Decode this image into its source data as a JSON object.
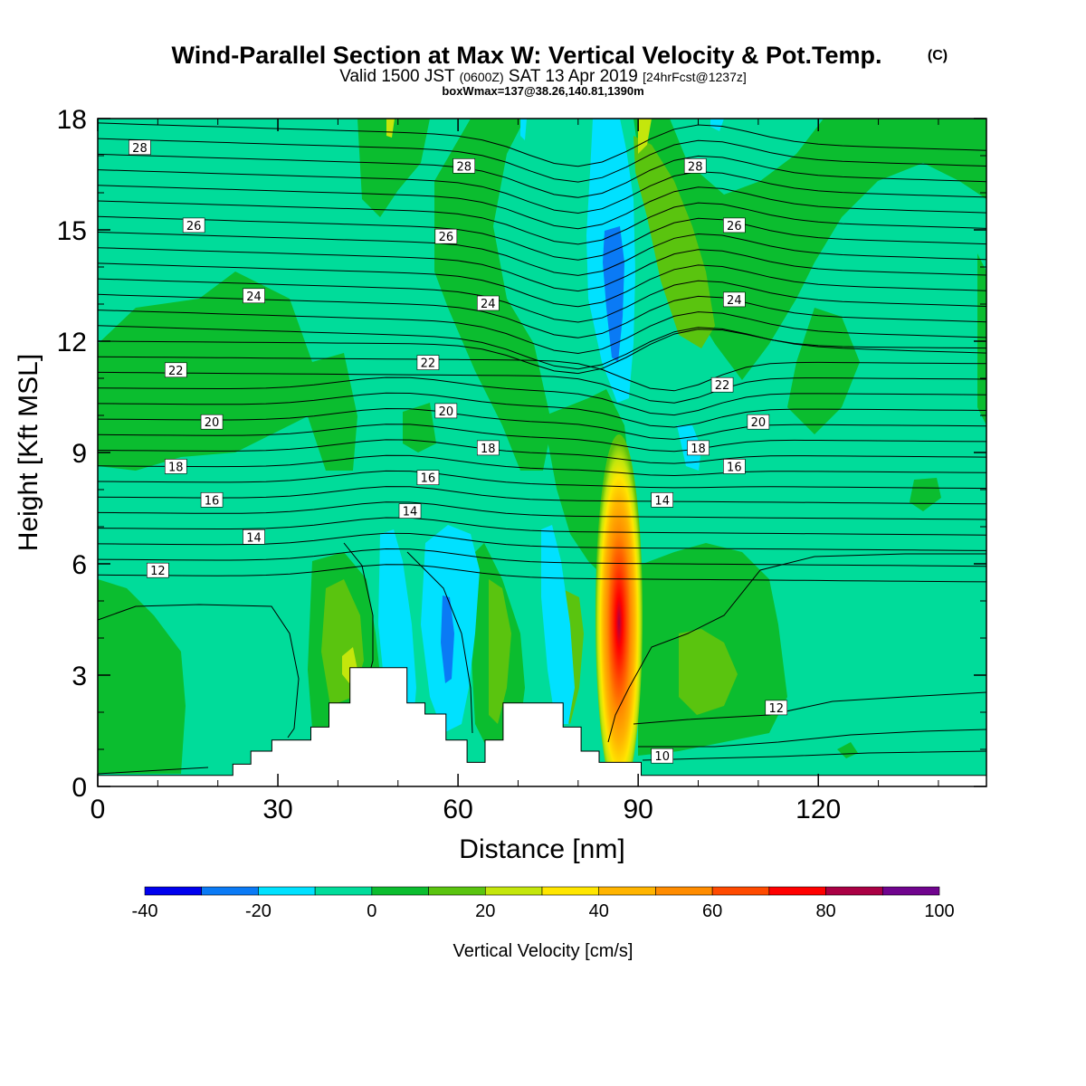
{
  "title_line1": "Wind-Parallel Section at Max W: Vertical Velocity & Pot.Temp.",
  "title_copyright": "(C)",
  "title_line2_valid": "Valid 1500 JST",
  "title_line2_utc": "(0600Z)",
  "title_line2_date": "SAT 13 Apr 2019",
  "title_line2_fcst": "[24hrFcst@1237z]",
  "title_line3": "boxWmax=137@38.26,140.81,1390m",
  "chart_data": {
    "type": "heatmap",
    "xlabel": "Distance [nm]",
    "ylabel": "Height [Kft MSL]",
    "xlim": [
      0,
      148
    ],
    "ylim": [
      0,
      18
    ],
    "x_ticks": [
      0,
      30,
      60,
      90,
      120
    ],
    "y_ticks": [
      0,
      3,
      6,
      9,
      12,
      15,
      18
    ],
    "colorbar": {
      "label": "Vertical Velocity [cm/s]",
      "levels": [
        -40,
        -30,
        -20,
        -10,
        0,
        10,
        20,
        30,
        40,
        50,
        60,
        70,
        80,
        90,
        100
      ],
      "tick_labels": [
        "-40",
        "-20",
        "0",
        "20",
        "40",
        "60",
        "80",
        "100"
      ],
      "tick_values": [
        -40,
        -20,
        0,
        20,
        40,
        60,
        80,
        100
      ],
      "colors": [
        "#0000ee",
        "#0a7af5",
        "#00e1ff",
        "#00dc9a",
        "#0bbd2f",
        "#5ac40f",
        "#c4e60c",
        "#ffe600",
        "#ffb400",
        "#ff8c00",
        "#ff4a00",
        "#ff0000",
        "#aa0044",
        "#70048e"
      ]
    },
    "theta_contour_labels": [
      {
        "value": "28",
        "x": 7,
        "y": 17.2
      },
      {
        "value": "28",
        "x": 61,
        "y": 16.7
      },
      {
        "value": "28",
        "x": 99.5,
        "y": 16.7
      },
      {
        "value": "26",
        "x": 16,
        "y": 15.1
      },
      {
        "value": "26",
        "x": 58,
        "y": 14.8
      },
      {
        "value": "26",
        "x": 106,
        "y": 15.1
      },
      {
        "value": "24",
        "x": 26,
        "y": 13.2
      },
      {
        "value": "24",
        "x": 65,
        "y": 13.0
      },
      {
        "value": "24",
        "x": 106,
        "y": 13.1
      },
      {
        "value": "22",
        "x": 13,
        "y": 11.2
      },
      {
        "value": "22",
        "x": 55,
        "y": 11.4
      },
      {
        "value": "22",
        "x": 104,
        "y": 10.8
      },
      {
        "value": "20",
        "x": 19,
        "y": 9.8
      },
      {
        "value": "20",
        "x": 58,
        "y": 10.1
      },
      {
        "value": "20",
        "x": 110,
        "y": 9.8
      },
      {
        "value": "18",
        "x": 13,
        "y": 8.6
      },
      {
        "value": "18",
        "x": 65,
        "y": 9.1
      },
      {
        "value": "18",
        "x": 100,
        "y": 9.1
      },
      {
        "value": "16",
        "x": 19,
        "y": 7.7
      },
      {
        "value": "16",
        "x": 55,
        "y": 8.3
      },
      {
        "value": "16",
        "x": 106,
        "y": 8.6
      },
      {
        "value": "14",
        "x": 26,
        "y": 6.7
      },
      {
        "value": "14",
        "x": 52,
        "y": 7.4
      },
      {
        "value": "14",
        "x": 94,
        "y": 7.7
      },
      {
        "value": "12",
        "x": 10,
        "y": 5.8
      },
      {
        "value": "12",
        "x": 113,
        "y": 2.1
      },
      {
        "value": "10",
        "x": 94,
        "y": 0.8
      }
    ],
    "terrain_profile_kft": [
      [
        0,
        0.3
      ],
      [
        22.5,
        0.3
      ],
      [
        22.5,
        0.6
      ],
      [
        25.5,
        0.6
      ],
      [
        25.5,
        0.95
      ],
      [
        29,
        0.95
      ],
      [
        29,
        1.25
      ],
      [
        35.5,
        1.25
      ],
      [
        35.5,
        1.6
      ],
      [
        38.5,
        1.6
      ],
      [
        38.5,
        2.25
      ],
      [
        42,
        2.25
      ],
      [
        42,
        3.2
      ],
      [
        51.5,
        3.2
      ],
      [
        51.5,
        2.25
      ],
      [
        54.5,
        2.25
      ],
      [
        54.5,
        1.95
      ],
      [
        58,
        1.95
      ],
      [
        58,
        1.25
      ],
      [
        61.5,
        1.25
      ],
      [
        61.5,
        0.65
      ],
      [
        64.5,
        0.65
      ],
      [
        64.5,
        1.25
      ],
      [
        67.5,
        1.25
      ],
      [
        67.5,
        2.25
      ],
      [
        77.5,
        2.25
      ],
      [
        77.5,
        1.6
      ],
      [
        80.5,
        1.6
      ],
      [
        80.5,
        0.95
      ],
      [
        83.5,
        0.95
      ],
      [
        83.5,
        0.65
      ],
      [
        90.5,
        0.65
      ],
      [
        90.5,
        0.3
      ],
      [
        148,
        0.3
      ]
    ]
  }
}
